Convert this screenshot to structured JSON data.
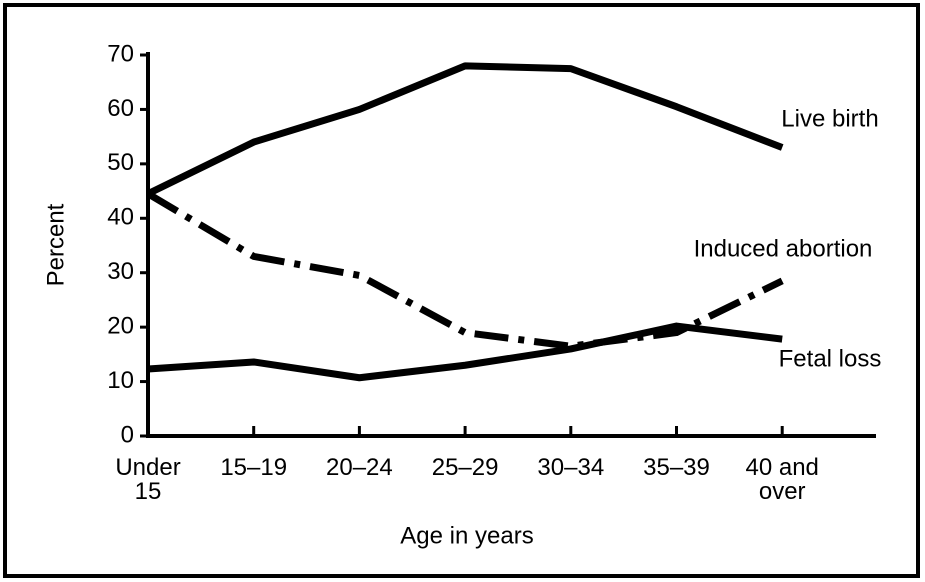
{
  "chart_data": {
    "type": "line",
    "x_label": "Age in years",
    "y_label": "Percent",
    "categories": [
      "Under 15",
      "15–19",
      "20–24",
      "25–29",
      "30–34",
      "35–39",
      "40 and over"
    ],
    "series": [
      {
        "name": "Live birth",
        "color": "#000000",
        "line_style": "solid",
        "values": [
          44.5,
          54,
          60,
          68,
          67.5,
          60.5,
          53
        ]
      },
      {
        "name": "Induced abortion",
        "color": "#000000",
        "line_style": "dashdot",
        "values": [
          44.5,
          33,
          29.5,
          19,
          16.5,
          19,
          28.5
        ]
      },
      {
        "name": "Fetal loss",
        "color": "#000000",
        "line_style": "solid",
        "values": [
          12.3,
          13.6,
          10.7,
          13,
          16,
          20.2,
          17.8
        ]
      }
    ],
    "ylim": [
      0,
      70
    ],
    "yticks": [
      0,
      10,
      20,
      30,
      40,
      50,
      60,
      70
    ],
    "grid": false
  }
}
